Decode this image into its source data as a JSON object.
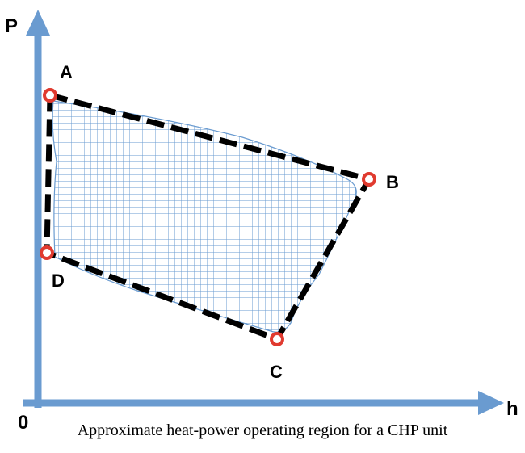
{
  "axes": {
    "y_label": "P",
    "x_label": "h",
    "origin_label": "0",
    "color": "#6a9bd0"
  },
  "vertices": [
    {
      "id": "A",
      "label": "A"
    },
    {
      "id": "B",
      "label": "B"
    },
    {
      "id": "C",
      "label": "C"
    },
    {
      "id": "D",
      "label": "D"
    }
  ],
  "colors": {
    "boundary": "#000000",
    "marker": "#e03a2f",
    "region_grid": "#6a9bd0"
  },
  "caption": "Approximate heat-power operating region for a CHP unit"
}
